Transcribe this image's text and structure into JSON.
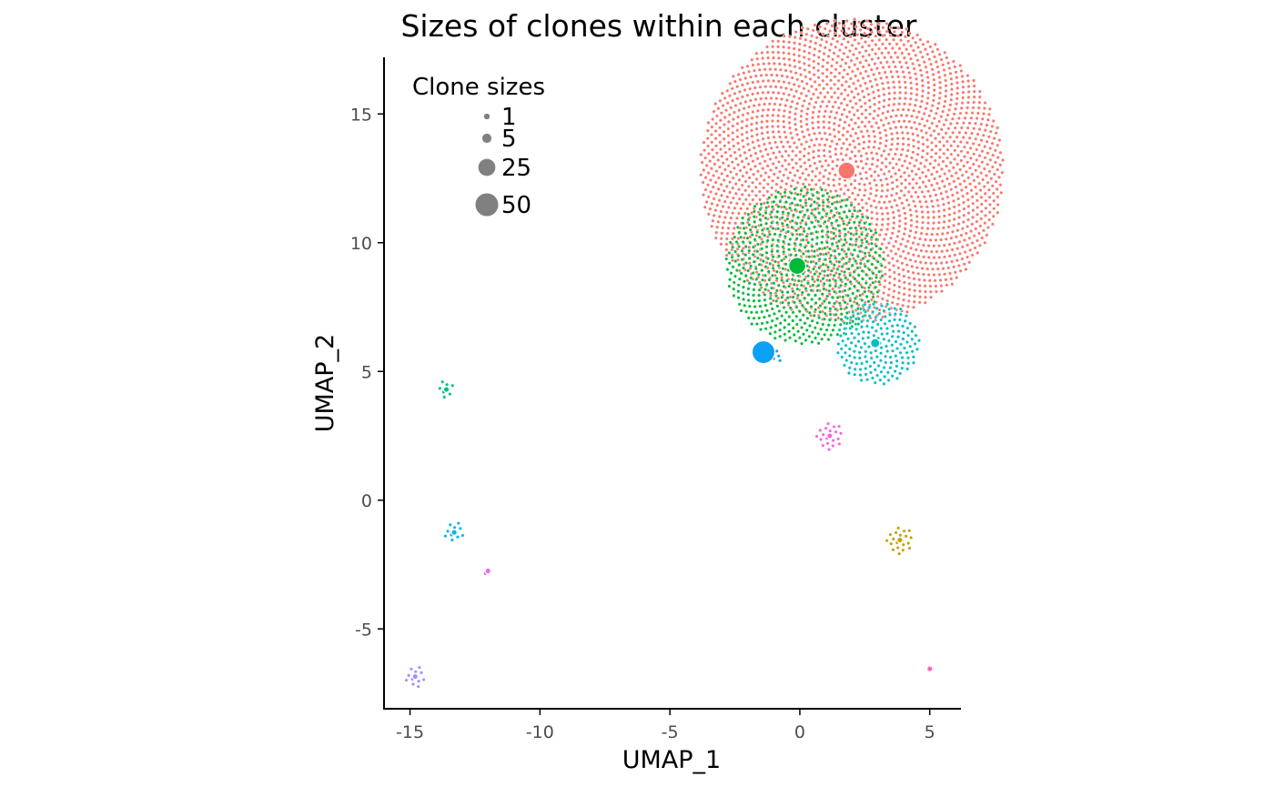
{
  "chart_data": {
    "type": "scatter",
    "title": "Sizes of clones within each cluster",
    "xlabel": "UMAP_1",
    "ylabel": "UMAP_2",
    "xlim": [
      -16.0,
      6.2
    ],
    "ylim": [
      -8.1,
      17.2
    ],
    "xticks": [
      -15,
      -10,
      -5,
      0,
      5
    ],
    "yticks": [
      -5,
      0,
      5,
      10,
      15
    ],
    "grid": false,
    "legend": {
      "title": "Clone sizes",
      "position": "top-left",
      "entries": [
        {
          "label": "1",
          "size": 1
        },
        {
          "label": "5",
          "size": 5
        },
        {
          "label": "25",
          "size": 25
        },
        {
          "label": "50",
          "size": 50
        }
      ]
    },
    "clusters": [
      {
        "cx": 2.0,
        "cy": 12.8,
        "cells": 2400,
        "center_x": 1.8,
        "center_y": 12.8,
        "center_size": 25,
        "color": "#F8766D"
      },
      {
        "cx": 0.2,
        "cy": 9.1,
        "cells": 650,
        "center_x": -0.1,
        "center_y": 9.1,
        "center_size": 25,
        "color": "#00BA38"
      },
      {
        "cx": 3.0,
        "cy": 6.1,
        "cells": 180,
        "center_x": 2.9,
        "center_y": 6.1,
        "center_size": 5,
        "color": "#00BFC4"
      },
      {
        "cx": -0.9,
        "cy": 5.6,
        "cells": 5,
        "center_x": -1.4,
        "center_y": 5.75,
        "center_size": 50,
        "color": "#0AA0F5"
      },
      {
        "cx": 1.15,
        "cy": 2.5,
        "cells": 20,
        "center_x": 1.15,
        "center_y": 2.5,
        "center_size": 1,
        "color": "#F564E3"
      },
      {
        "cx": 3.85,
        "cy": -1.55,
        "cells": 20,
        "center_x": 3.85,
        "center_y": -1.55,
        "center_size": 1,
        "color": "#C59E00"
      },
      {
        "cx": -13.6,
        "cy": 4.3,
        "cells": 8,
        "center_x": -13.6,
        "center_y": 4.3,
        "center_size": 1,
        "color": "#00BF7D"
      },
      {
        "cx": -13.3,
        "cy": -1.25,
        "cells": 11,
        "center_x": -13.3,
        "center_y": -1.25,
        "center_size": 1,
        "color": "#00B4EF"
      },
      {
        "cx": -12.0,
        "cy": -2.75,
        "cells": 2,
        "center_x": -12.0,
        "center_y": -2.75,
        "center_size": 1,
        "color": "#E76BF3"
      },
      {
        "cx": -14.8,
        "cy": -6.85,
        "cells": 12,
        "center_x": -14.8,
        "center_y": -6.85,
        "center_size": 1,
        "color": "#A58AFF"
      },
      {
        "cx": 5.0,
        "cy": -6.55,
        "cells": 1,
        "center_x": 5.0,
        "center_y": -6.55,
        "center_size": 1,
        "color": "#FF64B0"
      }
    ]
  },
  "colors": {
    "axis": "#000000",
    "tick_label": "#4d4d4d",
    "legend_point": "#808080",
    "cell_stroke": "#ffffff"
  }
}
